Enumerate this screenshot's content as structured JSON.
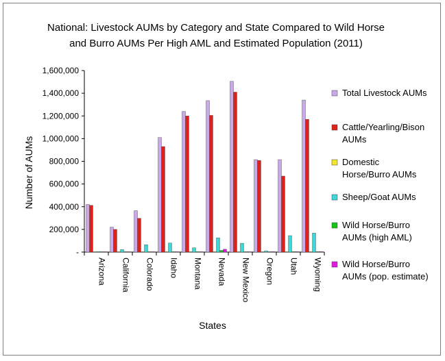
{
  "chart_data": {
    "type": "bar",
    "title_lines": [
      "National: Livestock AUMs by Category and State Compared to Wild Horse",
      "and Burro AUMs Per High AML and Estimated Population (2011)"
    ],
    "xlabel": "States",
    "ylabel": "Number of AUMs",
    "ylim": [
      0,
      1600000
    ],
    "yticks": [
      "-",
      "200,000",
      "400,000",
      "600,000",
      "800,000",
      "1,000,000",
      "1,200,000",
      "1,400,000",
      "1,600,000"
    ],
    "grid": false,
    "legend_position": "right",
    "categories": [
      "Arizona",
      "California",
      "Colorado",
      "Idaho",
      "Montana",
      "Nevada",
      "New Mexico",
      "Oregon",
      "Utah",
      "Wyoming"
    ],
    "series": [
      {
        "name_lines": [
          "Total Livestock AUMs"
        ],
        "color": "#c9a9e8",
        "values": [
          420000,
          220000,
          365000,
          1010000,
          1240000,
          1335000,
          1505000,
          815000,
          815000,
          1340000
        ]
      },
      {
        "name_lines": [
          "Cattle/Yearling/Bison",
          "AUMs"
        ],
        "color": "#e0201b",
        "values": [
          412000,
          200000,
          298000,
          930000,
          1200000,
          1205000,
          1410000,
          808000,
          670000,
          1170000
        ]
      },
      {
        "name_lines": [
          "Domestic",
          "Horse/Burro AUMs"
        ],
        "color": "#f5e62a",
        "values": [
          2000,
          1000,
          1500,
          2500,
          3000,
          1500,
          2000,
          1500,
          1500,
          2000
        ]
      },
      {
        "name_lines": [
          "Sheep/Goat AUMs"
        ],
        "color": "#3fd6d6",
        "values": [
          5000,
          22000,
          65000,
          80000,
          38000,
          125000,
          78000,
          10000,
          145000,
          168000
        ]
      },
      {
        "name_lines": [
          "Wild Horse/Burro",
          "AUMs (high AML)"
        ],
        "color": "#18c418",
        "values": [
          2000,
          2000,
          1000,
          1000,
          500,
          15000,
          500,
          3000,
          4000,
          4000
        ]
      },
      {
        "name_lines": [
          "Wild Horse/Burro",
          "AUMs (pop. estimate)"
        ],
        "color": "#e01ae0",
        "values": [
          3000,
          3000,
          1000,
          1000,
          500,
          25000,
          500,
          4000,
          4000,
          5000
        ]
      }
    ]
  }
}
